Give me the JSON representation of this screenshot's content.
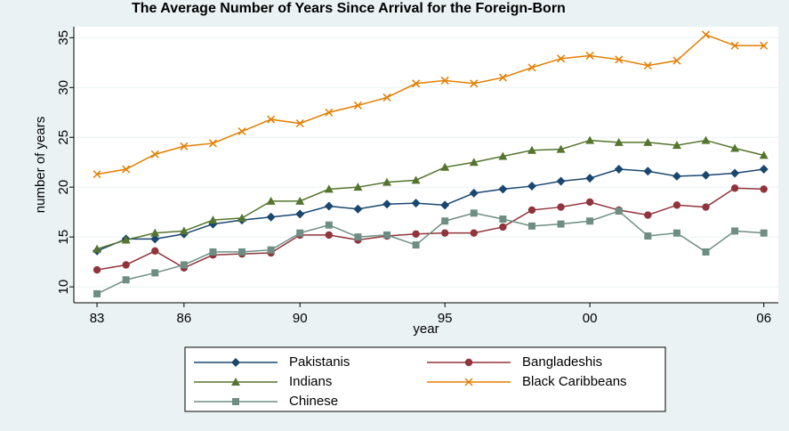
{
  "chart_data": {
    "type": "line",
    "title": "The Average Number of Years Since Arrival for the Foreign-Born",
    "x_label": "year",
    "y_label": "number of years",
    "x": [
      1983,
      1984,
      1985,
      1986,
      1987,
      1988,
      1989,
      1990,
      1991,
      1992,
      1993,
      1994,
      1995,
      1996,
      1997,
      1998,
      1999,
      2000,
      2001,
      2002,
      2003,
      2004,
      2005,
      2006
    ],
    "xlim": [
      1982.2,
      2006.5
    ],
    "xticks": [
      {
        "value": 1983,
        "label": "83"
      },
      {
        "value": 1986,
        "label": "86"
      },
      {
        "value": 1990,
        "label": "90"
      },
      {
        "value": 1995,
        "label": "95"
      },
      {
        "value": 2000,
        "label": "00"
      },
      {
        "value": 2006,
        "label": "06"
      }
    ],
    "ylim": [
      8.4,
      36.1
    ],
    "yticks": [
      10,
      15,
      20,
      25,
      30,
      35
    ],
    "grid": true,
    "legend": "bottom",
    "series": [
      {
        "name": "Pakistanis",
        "color": "#1a476f",
        "marker": "diamond",
        "values": [
          13.6,
          14.8,
          14.8,
          15.3,
          16.3,
          16.7,
          17.0,
          17.3,
          18.1,
          17.8,
          18.3,
          18.4,
          18.2,
          19.4,
          19.8,
          20.1,
          20.6,
          20.9,
          21.8,
          21.6,
          21.1,
          21.2,
          21.4,
          21.8
        ]
      },
      {
        "name": "Bangladeshis",
        "color": "#90353b",
        "marker": "circle",
        "values": [
          11.7,
          12.2,
          13.6,
          11.9,
          13.2,
          13.3,
          13.4,
          15.2,
          15.2,
          14.7,
          15.1,
          15.3,
          15.4,
          15.4,
          16.0,
          17.7,
          18.0,
          18.5,
          17.7,
          17.2,
          18.2,
          18.0,
          19.9,
          19.8
        ]
      },
      {
        "name": "Indians",
        "color": "#55752f",
        "marker": "triangle",
        "values": [
          13.8,
          14.7,
          15.4,
          15.6,
          16.7,
          16.9,
          18.6,
          18.6,
          19.8,
          20.0,
          20.5,
          20.7,
          22.0,
          22.5,
          23.1,
          23.7,
          23.8,
          24.7,
          24.5,
          24.5,
          24.2,
          24.7,
          23.9,
          23.2
        ]
      },
      {
        "name": "Black Caribbeans",
        "color": "#e37e00",
        "marker": "x",
        "values": [
          21.3,
          21.8,
          23.3,
          24.1,
          24.4,
          25.6,
          26.8,
          26.4,
          27.5,
          28.2,
          29.0,
          30.4,
          30.7,
          30.4,
          31.0,
          32.0,
          32.9,
          33.2,
          32.8,
          32.2,
          32.7,
          35.3,
          34.2,
          34.2
        ]
      },
      {
        "name": "Chinese",
        "color": "#6e8e84",
        "marker": "square",
        "values": [
          9.3,
          10.7,
          11.4,
          12.2,
          13.5,
          13.5,
          13.7,
          15.4,
          16.2,
          15.0,
          15.2,
          14.2,
          16.6,
          17.4,
          16.8,
          16.1,
          16.3,
          16.6,
          17.6,
          15.1,
          15.4,
          13.5,
          15.6,
          15.4
        ]
      }
    ]
  }
}
